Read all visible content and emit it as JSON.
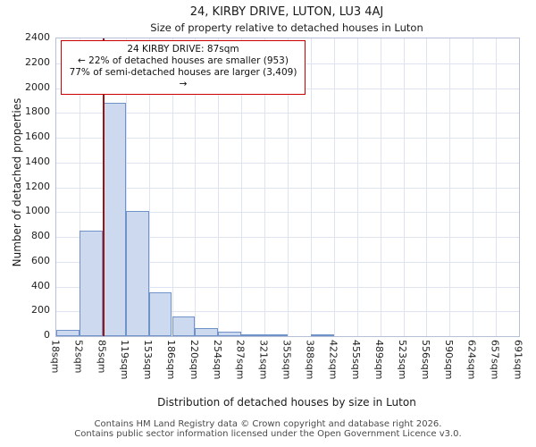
{
  "chart_data": {
    "type": "bar",
    "title": "24, KIRBY DRIVE, LUTON, LU3 4AJ",
    "subtitle": "Size of property relative to detached houses in Luton",
    "xlabel": "Distribution of detached houses by size in Luton",
    "ylabel": "Number of detached properties",
    "categories": [
      "18sqm",
      "52sqm",
      "85sqm",
      "119sqm",
      "153sqm",
      "186sqm",
      "220sqm",
      "254sqm",
      "287sqm",
      "321sqm",
      "355sqm",
      "388sqm",
      "422sqm",
      "455sqm",
      "489sqm",
      "523sqm",
      "556sqm",
      "590sqm",
      "624sqm",
      "657sqm",
      "691sqm"
    ],
    "values": [
      50,
      850,
      1880,
      1010,
      350,
      160,
      65,
      35,
      18,
      8,
      0,
      12,
      0,
      0,
      0,
      0,
      0,
      0,
      0,
      0
    ],
    "ylim": [
      0,
      2400
    ],
    "ytick_step": 200,
    "grid": true,
    "legend": "none",
    "bar_fill": "#cdd9ee",
    "bar_stroke": "#6f92c8",
    "marker": {
      "value_sqm": 87,
      "color": "#991414"
    },
    "annotation": {
      "lines": [
        "24 KIRBY DRIVE: 87sqm",
        "← 22% of detached houses are smaller (953)",
        "77% of semi-detached houses are larger (3,409) →"
      ],
      "border_color": "#cc0000"
    }
  },
  "footer": {
    "line1": "Contains HM Land Registry data © Crown copyright and database right 2026.",
    "line2": "Contains public sector information licensed under the Open Government Licence v3.0."
  }
}
